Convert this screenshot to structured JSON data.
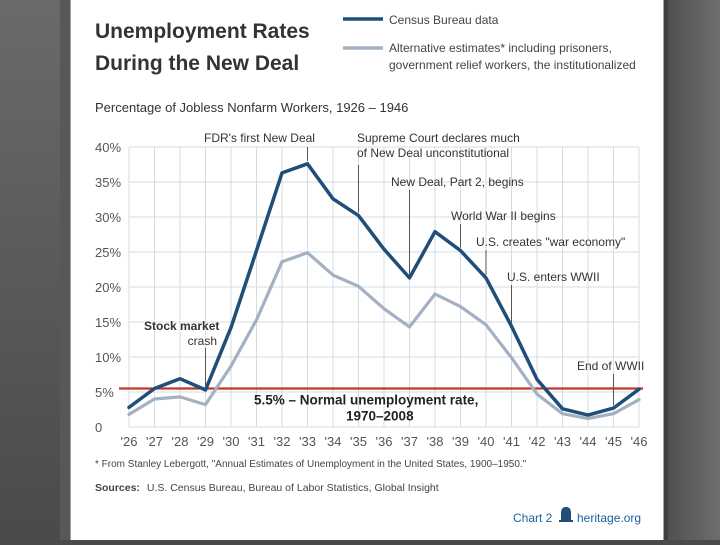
{
  "header": {
    "title_line1": "Unemployment Rates",
    "title_line2": "During the New Deal",
    "legend": {
      "series1": "Census Bureau data",
      "series2_line1": "Alternative estimates* including prisoners,",
      "series2_line2": "government relief workers, the institutionalized"
    },
    "subtitle": "Percentage of Jobless Nonfarm Workers, 1926 – 1946"
  },
  "chart_data": {
    "type": "line",
    "title": "Unemployment Rates During the New Deal",
    "subtitle": "Percentage of Jobless Nonfarm Workers, 1926 – 1946",
    "xlabel": "",
    "ylabel": "",
    "ylim": [
      0,
      40
    ],
    "x": [
      1926,
      1927,
      1928,
      1929,
      1930,
      1931,
      1932,
      1933,
      1934,
      1935,
      1936,
      1937,
      1938,
      1939,
      1940,
      1941,
      1942,
      1943,
      1944,
      1945,
      1946
    ],
    "x_tick_labels": [
      "'26",
      "'27",
      "'28",
      "'29",
      "'30",
      "'31",
      "'32",
      "'33",
      "'34",
      "'35",
      "'36",
      "'37",
      "'38",
      "'39",
      "'40",
      "'41",
      "'42",
      "'43",
      "'44",
      "'45",
      "'46"
    ],
    "y_ticks": [
      0,
      5,
      10,
      15,
      20,
      25,
      30,
      35,
      40
    ],
    "y_tick_labels": [
      "0",
      "5%",
      "10%",
      "15%",
      "20%",
      "25%",
      "30%",
      "35%",
      "40%"
    ],
    "series": [
      {
        "name": "Census Bureau data",
        "color": "#1f4e79",
        "values": [
          2.8,
          5.5,
          6.9,
          5.3,
          14.2,
          25.2,
          36.3,
          37.6,
          32.6,
          30.2,
          25.4,
          21.3,
          27.9,
          25.2,
          21.3,
          14.4,
          6.8,
          2.6,
          1.7,
          2.7,
          5.4
        ]
      },
      {
        "name": "Alternative estimates* including prisoners, government relief workers, the institutionalized",
        "color": "#a3b1c2",
        "values": [
          1.8,
          4.0,
          4.3,
          3.2,
          8.7,
          15.3,
          23.6,
          24.9,
          21.7,
          20.1,
          16.9,
          14.3,
          19.0,
          17.2,
          14.6,
          9.9,
          4.7,
          1.9,
          1.2,
          1.9,
          3.9
        ]
      }
    ],
    "reference_line": {
      "value": 5.5,
      "color": "#c0392b",
      "label_line1": "5.5% – Normal unemployment rate,",
      "label_line2": "1970–2008"
    },
    "annotations": [
      {
        "line1": "Stock market",
        "line2": "crash",
        "x": 1929,
        "y": 5.3
      },
      {
        "line1": "FDR's first New Deal",
        "line2": "",
        "x": 1933,
        "y": 37.6
      },
      {
        "line1": "Supreme Court declares much",
        "line2": "of New Deal unconstitutional",
        "x": 1935,
        "y": 30.2
      },
      {
        "line1": "New Deal, Part 2, begins",
        "line2": "",
        "x": 1937,
        "y": 21.3
      },
      {
        "line1": "World War II begins",
        "line2": "",
        "x": 1939,
        "y": 25.2
      },
      {
        "line1": "U.S. creates \"war economy\"",
        "line2": "",
        "x": 1940,
        "y": 21.3
      },
      {
        "line1": "U.S. enters WWII",
        "line2": "",
        "x": 1941,
        "y": 14.4
      },
      {
        "line1": "End of WWII",
        "line2": "",
        "x": 1945,
        "y": 2.7
      }
    ]
  },
  "footer": {
    "footnote": "* From Stanley Lebergott, \"Annual Estimates of Unemployment in the United States, 1900–1950.\"",
    "sources_label": "Sources:",
    "sources_text": "U.S. Census Bureau, Bureau of Labor Statistics, Global Insight",
    "chart_number": "Chart 2",
    "brand": "heritage.org"
  }
}
